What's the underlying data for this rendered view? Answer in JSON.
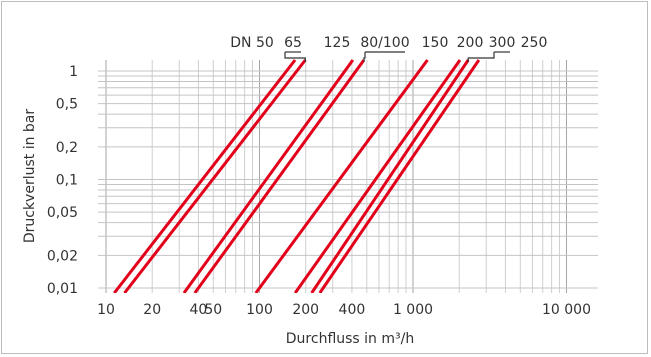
{
  "chart_data": {
    "type": "line",
    "title": "",
    "xlabel": "Durchfluss in m³/h",
    "ylabel": "Druckverlust in bar",
    "x_scale": "log",
    "y_scale": "log",
    "xlim": [
      10,
      20000
    ],
    "ylim": [
      0.01,
      1
    ],
    "grid": true,
    "x_ticks": [
      {
        "value": 10,
        "label": "10"
      },
      {
        "value": 20,
        "label": "20"
      },
      {
        "value": 40,
        "label": "40"
      },
      {
        "value": 50,
        "label": "50"
      },
      {
        "value": 100,
        "label": "100"
      },
      {
        "value": 200,
        "label": "200"
      },
      {
        "value": 400,
        "label": "400"
      },
      {
        "value": 1000,
        "label": "1 000"
      },
      {
        "value": 10000,
        "label": "10 000"
      }
    ],
    "y_ticks": [
      {
        "value": 1,
        "label": "1"
      },
      {
        "value": 0.5,
        "label": "0,5"
      },
      {
        "value": 0.2,
        "label": "0,2"
      },
      {
        "value": 0.1,
        "label": "0,1"
      },
      {
        "value": 0.05,
        "label": "0,05"
      },
      {
        "value": 0.02,
        "label": "0,02"
      },
      {
        "value": 0.01,
        "label": "0,01"
      }
    ],
    "series_color": "#e2001a",
    "dn_prefix": "DN",
    "series": [
      {
        "name": "50",
        "x": [
          12,
          150
        ],
        "y": [
          0.01,
          1
        ]
      },
      {
        "name": "65",
        "x": [
          14,
          175
        ],
        "y": [
          0.01,
          1
        ]
      },
      {
        "name": "125",
        "x": [
          34,
          360
        ],
        "y": [
          0.01,
          1
        ]
      },
      {
        "name": "80/100",
        "x": [
          40,
          425
        ],
        "y": [
          0.01,
          1
        ]
      },
      {
        "name": "150",
        "x": [
          100,
          1100
        ],
        "y": [
          0.01,
          1
        ]
      },
      {
        "name": "200",
        "x": [
          180,
          1800
        ],
        "y": [
          0.01,
          1
        ]
      },
      {
        "name": "300",
        "x": [
          230,
          2050
        ],
        "y": [
          0.01,
          1
        ]
      },
      {
        "name": "250",
        "x": [
          260,
          2400
        ],
        "y": [
          0.01,
          1
        ]
      }
    ],
    "labels": [
      {
        "text": "DN 50",
        "series": "50"
      },
      {
        "text": "65",
        "series": "65"
      },
      {
        "text": "125",
        "series": "125"
      },
      {
        "text": "80/100",
        "series": "80/100"
      },
      {
        "text": "150",
        "series": "150"
      },
      {
        "text": "200",
        "series": "200"
      },
      {
        "text": "300",
        "series": "300"
      },
      {
        "text": "250",
        "series": "250"
      }
    ]
  }
}
